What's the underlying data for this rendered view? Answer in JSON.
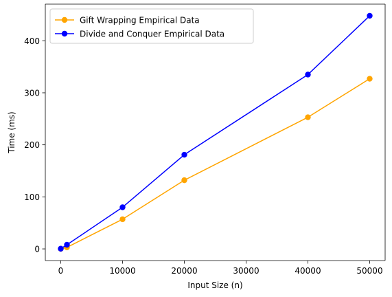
{
  "chart_data": {
    "type": "line",
    "title": "",
    "xlabel": "Input Size (n)",
    "ylabel": "Time (ms)",
    "xlim": [
      -2500,
      52500
    ],
    "ylim": [
      -22.4,
      470.4
    ],
    "xticks": [
      0,
      10000,
      20000,
      30000,
      40000,
      50000
    ],
    "yticks": [
      0,
      100,
      200,
      300,
      400
    ],
    "grid": false,
    "legend_position": "top-left",
    "x": [
      0,
      1000,
      10000,
      20000,
      40000,
      50000
    ],
    "series": [
      {
        "name": "Gift Wrapping Empirical Data",
        "color": "#FFA500",
        "marker": "circle",
        "values": [
          0.2,
          3,
          57,
          132,
          253,
          327
        ]
      },
      {
        "name": "Divide and Conquer Empirical Data",
        "color": "#0000FF",
        "marker": "circle",
        "values": [
          0.4,
          8,
          80,
          181,
          335,
          448
        ]
      }
    ]
  }
}
